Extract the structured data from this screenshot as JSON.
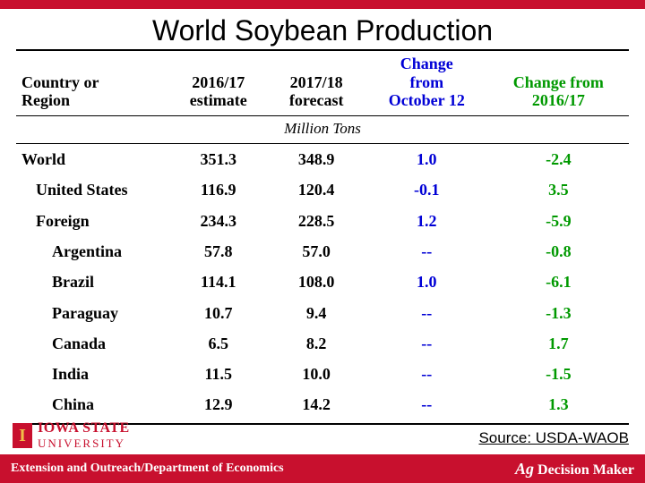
{
  "title": "World Soybean Production",
  "units_label": "Million Tons",
  "source_label": "Source: USDA-WAOB",
  "footer_left": "Extension and Outreach/Department of Economics",
  "footer_right_pre": "Ag",
  "footer_right_post": " Decision Maker",
  "logo_letter": "I",
  "logo_line1": "IOWA STATE",
  "logo_line2": "UNIVERSITY",
  "colors": {
    "brand_red": "#c8102e",
    "brand_gold": "#f1be48",
    "col_blue": "#0000d6",
    "col_green": "#009900",
    "text_black": "#000000",
    "bg": "#ffffff"
  },
  "table": {
    "type": "table",
    "columns": [
      {
        "key": "region",
        "label": "Country or\nRegion",
        "color": "#000000",
        "align": "left"
      },
      {
        "key": "est",
        "label": "2016/17\nestimate",
        "color": "#000000",
        "align": "center"
      },
      {
        "key": "fcst",
        "label": "2017/18\nforecast",
        "color": "#000000",
        "align": "center"
      },
      {
        "key": "chgOct",
        "label": "Change\nfrom\nOctober 12",
        "color": "#0000d6",
        "align": "center"
      },
      {
        "key": "chgYr",
        "label": "Change from\n2016/17",
        "color": "#009900",
        "align": "center"
      }
    ],
    "rows": [
      {
        "indent": 0,
        "region": "World",
        "est": "351.3",
        "fcst": "348.9",
        "chgOct": "1.0",
        "chgYr": "-2.4"
      },
      {
        "indent": 1,
        "region": "United States",
        "est": "116.9",
        "fcst": "120.4",
        "chgOct": "-0.1",
        "chgYr": "3.5"
      },
      {
        "indent": 1,
        "region": "Foreign",
        "est": "234.3",
        "fcst": "228.5",
        "chgOct": "1.2",
        "chgYr": "-5.9"
      },
      {
        "indent": 2,
        "region": "Argentina",
        "est": "57.8",
        "fcst": "57.0",
        "chgOct": "--",
        "chgYr": "-0.8"
      },
      {
        "indent": 2,
        "region": "Brazil",
        "est": "114.1",
        "fcst": "108.0",
        "chgOct": "1.0",
        "chgYr": "-6.1"
      },
      {
        "indent": 2,
        "region": "Paraguay",
        "est": "10.7",
        "fcst": "9.4",
        "chgOct": "--",
        "chgYr": "-1.3"
      },
      {
        "indent": 2,
        "region": "Canada",
        "est": "6.5",
        "fcst": "8.2",
        "chgOct": "--",
        "chgYr": "1.7"
      },
      {
        "indent": 2,
        "region": "India",
        "est": "11.5",
        "fcst": "10.0",
        "chgOct": "--",
        "chgYr": "-1.5"
      },
      {
        "indent": 2,
        "region": "China",
        "est": "12.9",
        "fcst": "14.2",
        "chgOct": "--",
        "chgYr": "1.3"
      }
    ]
  }
}
